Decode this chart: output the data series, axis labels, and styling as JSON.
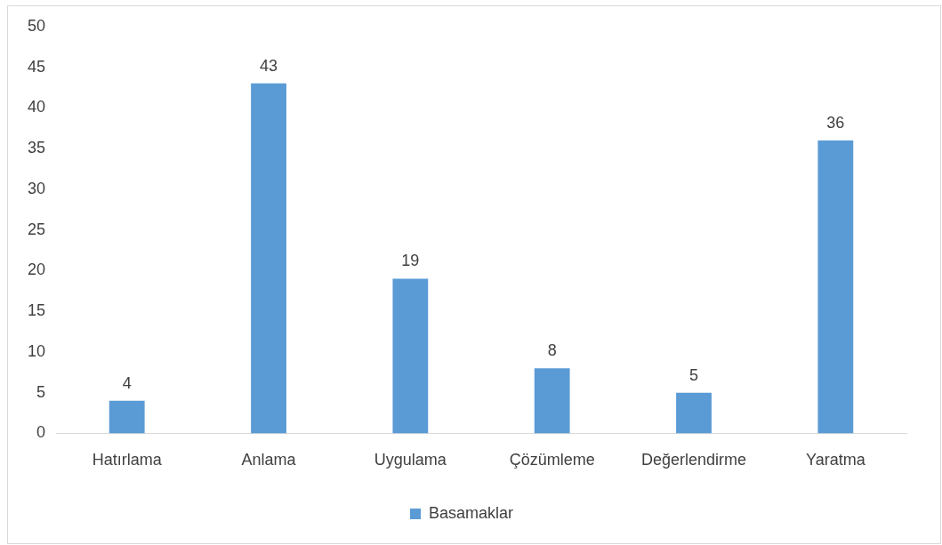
{
  "chart_data": {
    "type": "bar",
    "categories": [
      "Hatırlama",
      "Anlama",
      "Uygulama",
      "Çözümleme",
      "Değerlendirme",
      "Yaratma"
    ],
    "series": [
      {
        "name": "Basamaklar",
        "color": "#5b9bd5",
        "values": [
          4,
          43,
          19,
          8,
          5,
          36
        ]
      }
    ],
    "ylim": [
      0,
      50
    ],
    "yticks": [
      0,
      5,
      10,
      15,
      20,
      25,
      30,
      35,
      40,
      45,
      50
    ],
    "grid": false,
    "legend": "bottom",
    "data_labels": true
  }
}
